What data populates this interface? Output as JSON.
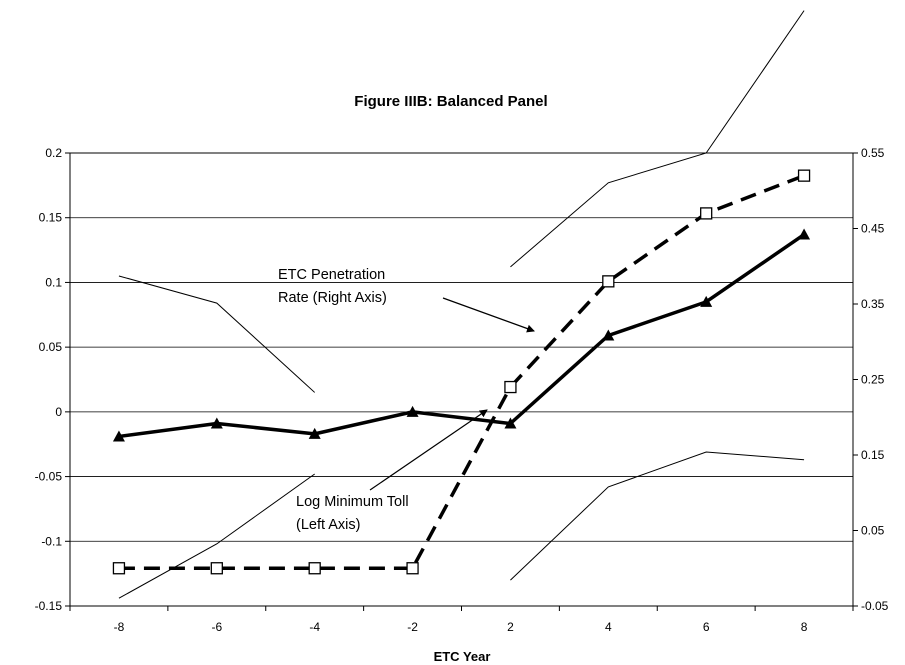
{
  "chart_data": {
    "type": "line",
    "title": "Figure IIIB: Balanced Panel",
    "xlabel": "ETC Year",
    "categories": [
      "-8",
      "-6",
      "-4",
      "-2",
      "2",
      "4",
      "6",
      "8"
    ],
    "y_left": {
      "ticks": [
        "0.2",
        "0.15",
        "0.1",
        "0.05",
        "0",
        "-0.05",
        "-0.1",
        "-0.15"
      ],
      "ylim": [
        -0.15,
        0.2
      ]
    },
    "y_right": {
      "ticks": [
        "0.55",
        "0.45",
        "0.35",
        "0.25",
        "0.15",
        "0.05",
        "-0.05"
      ],
      "ylim": [
        -0.05,
        0.55
      ]
    },
    "grid": "horizontal",
    "series": [
      {
        "name": "Log Minimum Toll (Left Axis)",
        "axis": "left",
        "style": "solid-bold",
        "marker": "triangle",
        "values": [
          -0.019,
          -0.009,
          -0.017,
          0.0,
          -0.009,
          0.059,
          0.085,
          0.137
        ]
      },
      {
        "name": "ETC Penetration Rate (Right Axis)",
        "axis": "right",
        "style": "dashed-bold",
        "marker": "open-square",
        "values": [
          0.0,
          0.0,
          0.0,
          0.0,
          0.24,
          0.38,
          0.47,
          0.52
        ]
      },
      {
        "name": "CI upper (left)",
        "axis": "left",
        "style": "thin",
        "segments": [
          {
            "x": [
              "-8",
              "-6",
              "-4"
            ],
            "values": [
              0.105,
              0.084,
              0.015
            ]
          },
          {
            "x": [
              "2",
              "4",
              "6",
              "8"
            ],
            "values": [
              0.112,
              0.177,
              0.2,
              0.31
            ]
          }
        ]
      },
      {
        "name": "CI lower (left)",
        "axis": "left",
        "style": "thin",
        "segments": [
          {
            "x": [
              "-8",
              "-6",
              "-4"
            ],
            "values": [
              -0.144,
              -0.102,
              -0.048
            ]
          },
          {
            "x": [
              "2",
              "4",
              "6",
              "8"
            ],
            "values": [
              -0.13,
              -0.058,
              -0.031,
              -0.037
            ]
          }
        ]
      }
    ],
    "annotations": [
      {
        "lines": [
          "ETC Penetration",
          "Rate (Right Axis)"
        ],
        "points_to": "ETC Penetration Rate (Right Axis)"
      },
      {
        "lines": [
          "Log Minimum Toll",
          "(Left Axis)"
        ],
        "points_to": "Log Minimum Toll (Left Axis)"
      }
    ]
  }
}
